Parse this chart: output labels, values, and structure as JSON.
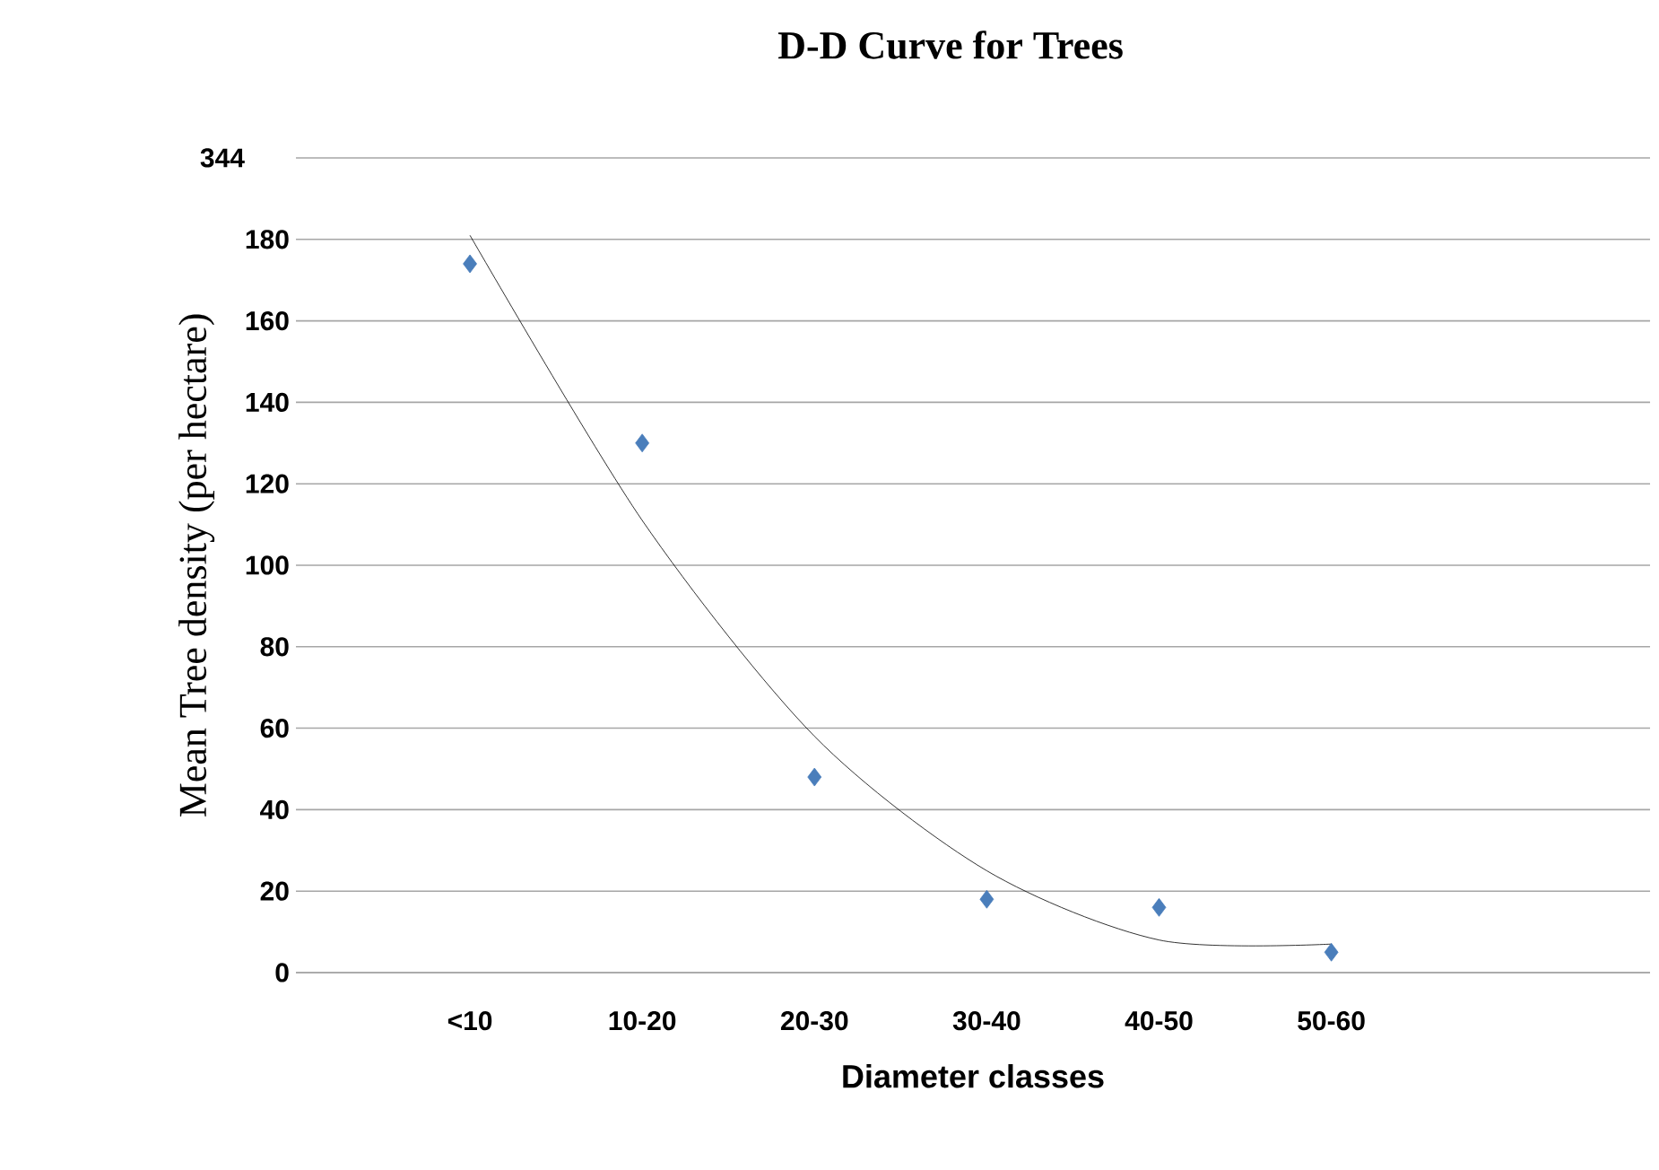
{
  "chart_data": {
    "type": "scatter",
    "title": "D-D Curve for Trees",
    "xlabel": "Diameter classes",
    "ylabel": "Mean Tree density (per hectare)",
    "categories": [
      "<10",
      "10-20",
      "20-30",
      "30-40",
      "40-50",
      "50-60"
    ],
    "series": [
      {
        "color": "#4a7ebb",
        "marker": "diamond",
        "values": [
          174,
          130,
          48,
          18,
          16,
          5
        ]
      },
      {
        "type": "line",
        "color": "#000000",
        "marker": "none",
        "line_style": "solid",
        "values": [
          181,
          111,
          58,
          25,
          8,
          7
        ]
      }
    ],
    "ylim": [
      0,
      200
    ],
    "yticks": [
      0,
      20,
      40,
      60,
      80,
      100,
      120,
      140,
      160,
      180,
      {
        "value": 200,
        "label": null
      }
    ],
    "annotations": [
      "344"
    ],
    "grid": "y"
  }
}
